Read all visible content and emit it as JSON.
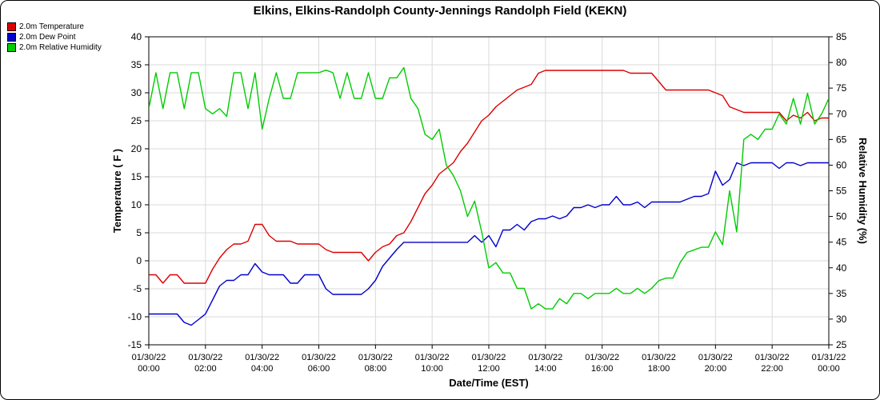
{
  "title": "Elkins, Elkins-Randolph County-Jennings Randolph Field (KEKN)",
  "legend": {
    "items": [
      {
        "label": "2.0m Temperature",
        "color": "#dd0000"
      },
      {
        "label": "2.0m Dew Point",
        "color": "#0000cc"
      },
      {
        "label": "2.0m Relative Humidity",
        "color": "#00cc00"
      }
    ]
  },
  "chart_data": {
    "type": "line",
    "title": "Elkins, Elkins-Randolph County-Jennings Randolph Field (KEKN)",
    "xlabel": "Date/Time (EST)",
    "ylabel_left": "Temperature ( F )",
    "ylabel_right": "Relative Humidity (%)",
    "grid": true,
    "legend_position": "top-left",
    "x_range_hours": [
      0,
      24
    ],
    "x_start_hour": 0,
    "x_interval_hours": 0.25,
    "ylim_left": [
      -15,
      40
    ],
    "ylim_right": [
      25,
      85
    ],
    "y_ticks_left": [
      40,
      35,
      30,
      25,
      20,
      15,
      10,
      5,
      0,
      -5,
      -10,
      -15
    ],
    "y_ticks_right": [
      85,
      80,
      75,
      70,
      65,
      60,
      55,
      50,
      45,
      40,
      35,
      30,
      25
    ],
    "x_ticks": [
      {
        "hour": 0,
        "date": "01/30/22",
        "time": "00:00"
      },
      {
        "hour": 2,
        "date": "01/30/22",
        "time": "02:00"
      },
      {
        "hour": 4,
        "date": "01/30/22",
        "time": "04:00"
      },
      {
        "hour": 6,
        "date": "01/30/22",
        "time": "06:00"
      },
      {
        "hour": 8,
        "date": "01/30/22",
        "time": "08:00"
      },
      {
        "hour": 10,
        "date": "01/30/22",
        "time": "10:00"
      },
      {
        "hour": 12,
        "date": "01/30/22",
        "time": "12:00"
      },
      {
        "hour": 14,
        "date": "01/30/22",
        "time": "14:00"
      },
      {
        "hour": 16,
        "date": "01/30/22",
        "time": "16:00"
      },
      {
        "hour": 18,
        "date": "01/30/22",
        "time": "18:00"
      },
      {
        "hour": 20,
        "date": "01/30/22",
        "time": "20:00"
      },
      {
        "hour": 22,
        "date": "01/30/22",
        "time": "22:00"
      },
      {
        "hour": 24,
        "date": "01/31/22",
        "time": "00:00"
      }
    ],
    "series": [
      {
        "name": "2.0m Temperature",
        "color": "#dd0000",
        "axis": "left",
        "values": [
          -2.5,
          -2.5,
          -4,
          -2.5,
          -2.5,
          -4,
          -4,
          -4,
          -4,
          -1.5,
          0.5,
          2,
          3,
          3,
          3.5,
          6.5,
          6.5,
          4.5,
          3.5,
          3.5,
          3.5,
          3,
          3,
          3,
          3,
          2,
          1.5,
          1.5,
          1.5,
          1.5,
          1.5,
          0,
          1.5,
          2.5,
          3,
          4.5,
          5,
          7,
          9.5,
          12,
          13.5,
          15.5,
          16.5,
          17.5,
          19.5,
          21,
          23,
          25,
          26,
          27.5,
          28.5,
          29.5,
          30.5,
          31,
          31.5,
          33.5,
          34,
          34,
          34,
          34,
          34,
          34,
          34,
          34,
          34,
          34,
          34,
          34,
          33.5,
          33.5,
          33.5,
          33.5,
          32,
          30.5,
          30.5,
          30.5,
          30.5,
          30.5,
          30.5,
          30.5,
          30,
          29.5,
          27.5,
          27,
          26.5,
          26.5,
          26.5,
          26.5,
          26.5,
          26.5,
          25,
          26,
          25.5,
          26.5,
          25,
          25.5,
          25.5
        ]
      },
      {
        "name": "2.0m Dew Point",
        "color": "#0000cc",
        "axis": "left",
        "values": [
          -9.5,
          -9.5,
          -9.5,
          -9.5,
          -9.5,
          -11,
          -11.5,
          -10.5,
          -9.5,
          -7,
          -4.5,
          -3.5,
          -3.5,
          -2.5,
          -2.5,
          -0.5,
          -2,
          -2.5,
          -2.5,
          -2.5,
          -4,
          -4,
          -2.5,
          -2.5,
          -2.5,
          -5,
          -6,
          -6,
          -6,
          -6,
          -6,
          -5,
          -3.5,
          -1,
          0.5,
          2,
          3.3,
          3.3,
          3.3,
          3.3,
          3.3,
          3.3,
          3.3,
          3.3,
          3.3,
          3.3,
          4.5,
          3.3,
          4.5,
          2.5,
          5.5,
          5.5,
          6.5,
          5.5,
          7,
          7.5,
          7.5,
          8,
          7.5,
          8,
          9.5,
          9.5,
          10,
          9.5,
          10,
          10,
          11.5,
          10,
          10,
          10.5,
          9.5,
          10.5,
          10.5,
          10.5,
          10.5,
          10.5,
          11,
          11.5,
          11.5,
          12,
          16,
          13.5,
          14.5,
          17.5,
          17,
          17.5,
          17.5,
          17.5,
          17.5,
          16.5,
          17.5,
          17.5,
          17,
          17.5,
          17.5,
          17.5,
          17.5
        ]
      },
      {
        "name": "2.0m Relative Humidity",
        "color": "#00cc00",
        "axis": "right",
        "values": [
          71,
          78,
          71,
          78,
          78,
          71,
          78,
          78,
          71,
          70,
          71,
          69.5,
          78,
          78,
          71,
          78,
          67,
          73,
          78,
          73,
          73,
          78,
          78,
          78,
          78,
          78.5,
          78,
          73,
          78,
          73,
          73,
          78,
          73,
          73,
          77,
          77,
          79,
          73,
          71,
          66,
          65,
          67,
          60,
          58,
          55,
          50,
          53,
          47,
          40,
          41,
          39,
          39,
          36,
          36,
          32,
          33,
          32,
          32,
          34,
          33,
          35,
          35,
          34,
          35,
          35,
          35,
          36,
          35,
          35,
          36,
          35,
          36,
          37.5,
          38,
          38,
          41,
          43,
          43.5,
          44,
          44,
          47,
          44.5,
          55,
          47,
          65,
          66,
          65,
          67,
          67,
          70,
          68,
          73,
          68,
          74,
          68,
          70,
          73
        ]
      }
    ]
  }
}
